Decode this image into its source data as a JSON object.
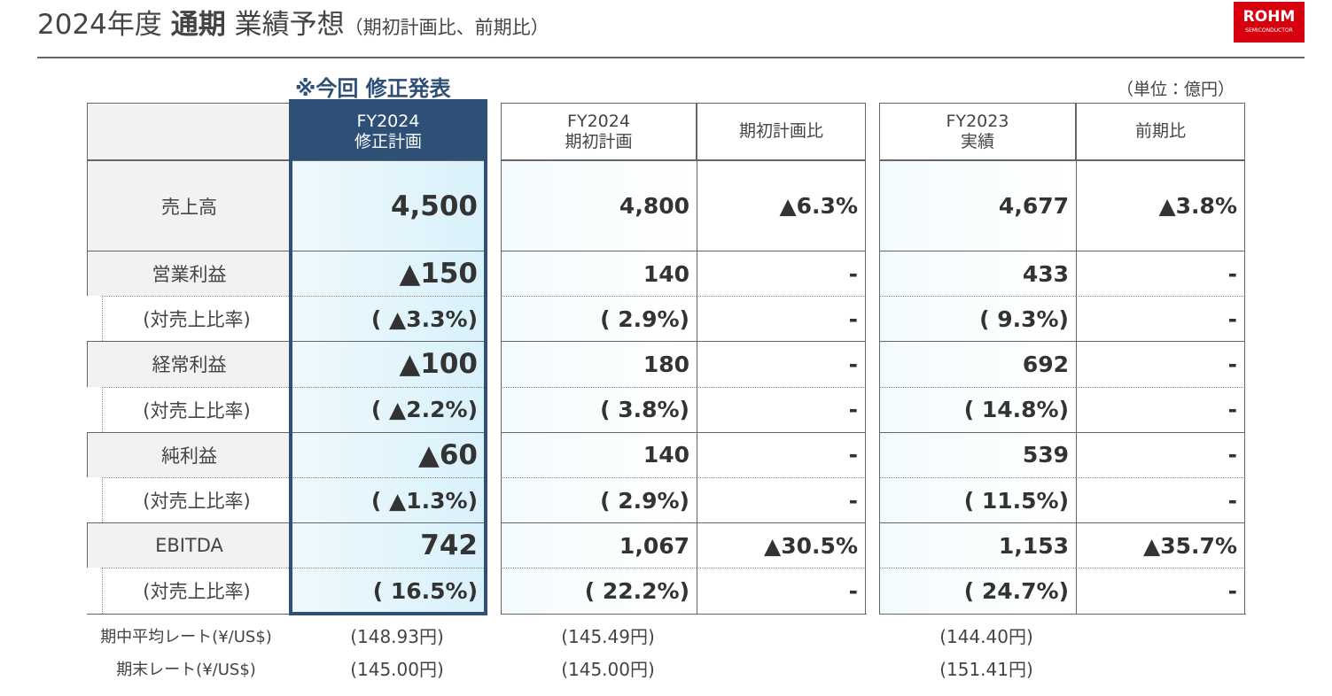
{
  "header": {
    "title_year": "2024年度",
    "title_bold": "通期",
    "title_main": "業績予想",
    "title_sub": "（期初計画比、前期比）",
    "logo": "ROHM",
    "logo_sub": "SEMICONDUCTOR"
  },
  "badge": "※今回 修正発表",
  "unit": "（単位：億円）",
  "table": {
    "columns": [
      [
        "FY2024",
        "修正計画"
      ],
      [
        "FY2024",
        "期初計画"
      ],
      [
        "期初計画比"
      ],
      [
        "FY2023",
        "実績"
      ],
      [
        "前期比"
      ]
    ],
    "rows": [
      {
        "label": "売上高",
        "cells": [
          "4,500",
          "4,800",
          "▲6.3%",
          "4,677",
          "▲3.8%"
        ]
      },
      {
        "label": "営業利益",
        "cells": [
          "▲150",
          "140",
          "-",
          "433",
          "-"
        ]
      },
      {
        "label": "(対売上比率)",
        "cells": [
          "( ▲3.3%)",
          "( 2.9%)",
          "-",
          "( 9.3%)",
          "-"
        ]
      },
      {
        "label": "経常利益",
        "cells": [
          "▲100",
          "180",
          "-",
          "692",
          "-"
        ]
      },
      {
        "label": "(対売上比率)",
        "cells": [
          "( ▲2.2%)",
          "( 3.8%)",
          "-",
          "( 14.8%)",
          "-"
        ]
      },
      {
        "label": "純利益",
        "cells": [
          "▲60",
          "140",
          "-",
          "539",
          "-"
        ]
      },
      {
        "label": "(対売上比率)",
        "cells": [
          "( ▲1.3%)",
          "( 2.9%)",
          "-",
          "( 11.5%)",
          "-"
        ]
      },
      {
        "label": "EBITDA",
        "cells": [
          "742",
          "1,067",
          "▲30.5%",
          "1,153",
          "▲35.7%"
        ]
      },
      {
        "label": "(対売上比率)",
        "cells": [
          "( 16.5%)",
          "( 22.2%)",
          "-",
          "( 24.7%)",
          "-"
        ]
      }
    ]
  },
  "rates": [
    {
      "label": "期中平均レート(¥/US$)",
      "values": [
        "(148.93円)",
        "(145.49円)",
        "(144.40円)"
      ]
    },
    {
      "label": "期末レート(¥/US$)",
      "values": [
        "(145.00円)",
        "(145.00円)",
        "(151.41円)"
      ]
    }
  ]
}
